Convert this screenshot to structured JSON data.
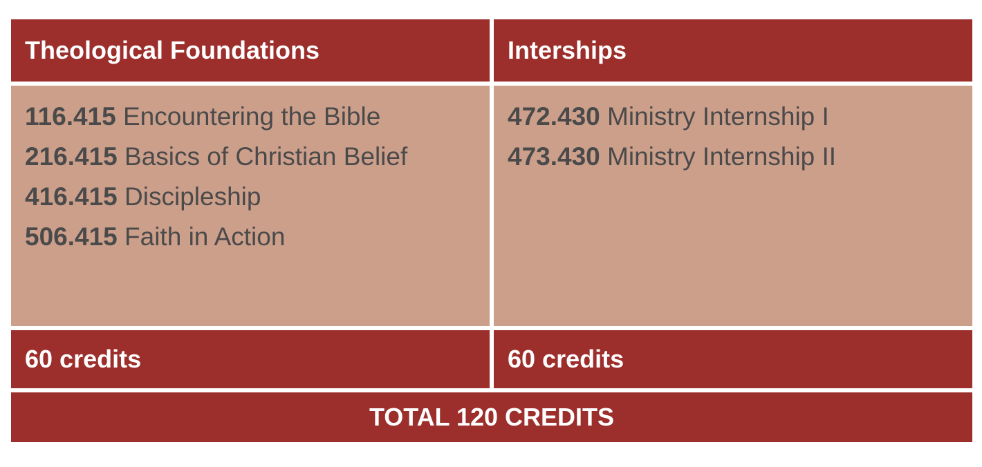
{
  "table": {
    "columns": [
      {
        "header": "Theological Foundations",
        "courses": [
          {
            "code": "116.415",
            "title": "Encountering the Bible"
          },
          {
            "code": "216.415",
            "title": "Basics of Christian Belief"
          },
          {
            "code": "416.415",
            "title": "Discipleship"
          },
          {
            "code": "506.415",
            "title": "Faith in Action"
          }
        ],
        "credits": "60 credits"
      },
      {
        "header": "Interships",
        "courses": [
          {
            "code": "472.430",
            "title": "Ministry Internship I"
          },
          {
            "code": "473.430",
            "title": "Ministry Internship II"
          }
        ],
        "credits": "60 credits"
      }
    ],
    "total": "TOTAL 120 CREDITS"
  },
  "colors": {
    "header_bg": "#9c2e2b",
    "body_bg": "#cc9f8b",
    "header_text": "#ffffff",
    "body_text": "#4a4a4a"
  }
}
